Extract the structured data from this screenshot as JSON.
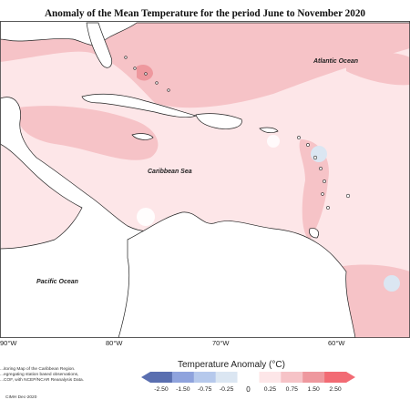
{
  "title": "Anomaly of the Mean Temperature for the period June to November 2020",
  "map": {
    "place_labels": {
      "atlantic": "Atlantic Ocean",
      "caribbean": "Caribbean Sea",
      "pacific": "Pacific Ocean"
    },
    "longitude_labels": [
      "90°W",
      "80°W",
      "70°W",
      "60°W"
    ]
  },
  "legend": {
    "title": "Temperature Anomaly (°C)",
    "ticks": [
      "-2.50",
      "-1.50",
      "-0.75",
      "-0.25",
      "0",
      "0.25",
      "0.75",
      "1.50",
      "2.50"
    ],
    "colors": [
      "#5a6fb0",
      "#8fa3dd",
      "#b6c9ec",
      "#dbe6f2",
      "#ffffff",
      "#fde6e8",
      "#f6c3c7",
      "#ee989e",
      "#f26b74"
    ]
  },
  "credit": {
    "lines": [
      "...itoring Map of the Caribbean Region.",
      "...egregating station based observations,",
      "...COF, with NCEP/NCAR Reanalysis Data."
    ],
    "org": "CIMH Dec-2020"
  },
  "colors": {
    "land": "#ffffff",
    "ocean_low": "#fde6e8",
    "ocean_mid": "#f6c3c7",
    "ocean_high": "#ee989e",
    "cool": "#dbe6f2"
  }
}
